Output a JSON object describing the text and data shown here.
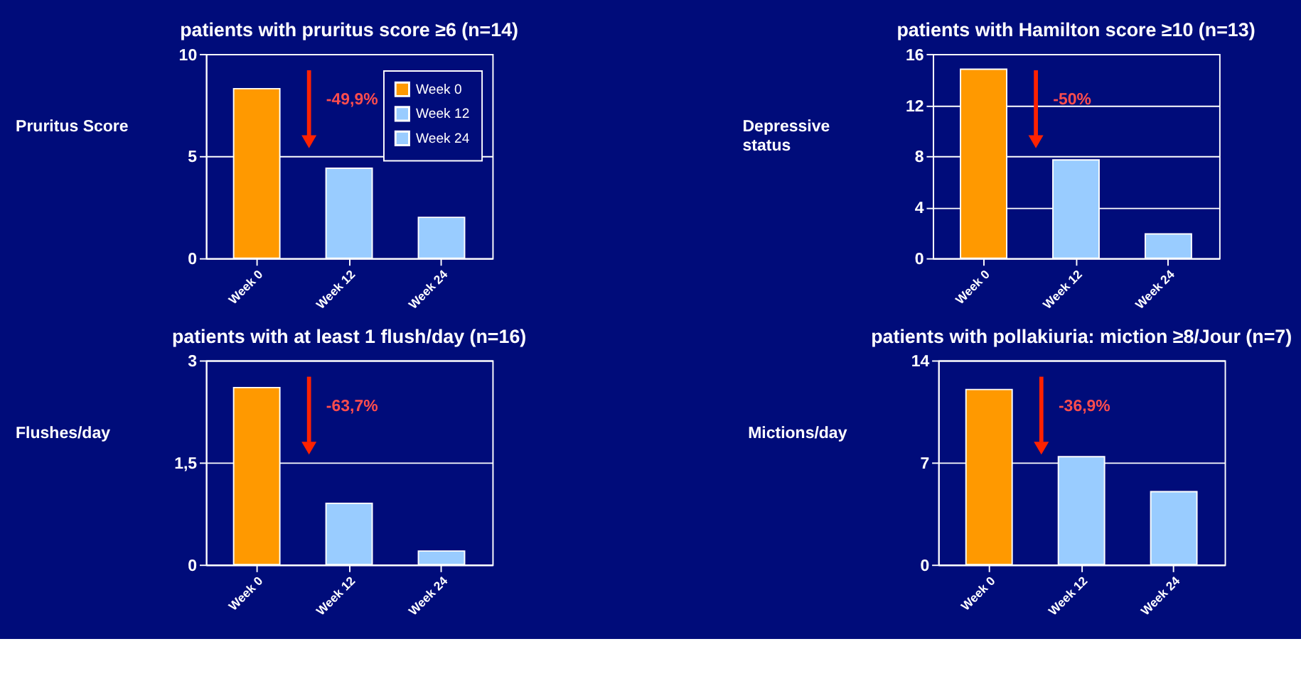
{
  "chart_data": [
    {
      "type": "bar",
      "title": "patients with pruritus score  ≥6 (n=14)",
      "ylabel": "Pruritus Score",
      "categories": [
        "Week 0",
        "Week 12",
        "Week 24"
      ],
      "series": [
        {
          "name": "Week 0",
          "color": "#ff9900",
          "values": [
            8.3,
            null,
            null
          ]
        },
        {
          "name": "Week 12",
          "color": "#99ccff",
          "values": [
            null,
            4.4,
            null
          ]
        },
        {
          "name": "Week 24",
          "color": "#99ccff",
          "values": [
            null,
            null,
            2.0
          ]
        }
      ],
      "ylim": [
        0,
        10
      ],
      "yticks": [
        0,
        5,
        10
      ],
      "grid": "y",
      "legend": "top right",
      "annotations": [
        "-49,9%"
      ]
    },
    {
      "type": "bar",
      "title": "patients with Hamilton score ≥10 (n=13)",
      "ylabel": "Depressive\nstatus",
      "categories": [
        "Week 0",
        "Week 12",
        "Week 24"
      ],
      "values": [
        14.8,
        7.7,
        1.9
      ],
      "colors": [
        "#ff9900",
        "#99ccff",
        "#99ccff"
      ],
      "ylim": [
        0,
        16
      ],
      "yticks": [
        0,
        4,
        8,
        12,
        16
      ],
      "grid": "y",
      "annotations": [
        "-50%"
      ]
    },
    {
      "type": "bar",
      "title": "patients with at least 1 flush/day (n=16)",
      "ylabel": "Flushes/day",
      "categories": [
        "Week 0",
        "Week 12",
        "Week 24"
      ],
      "values": [
        2.6,
        0.9,
        0.2
      ],
      "colors": [
        "#ff9900",
        "#99ccff",
        "#99ccff"
      ],
      "ylim": [
        0,
        3
      ],
      "yticks": [
        0,
        {
          "value": 1.5,
          "label": "1,5"
        },
        3
      ],
      "grid": "y",
      "annotations": [
        "-63,7%"
      ]
    },
    {
      "type": "bar",
      "title": "patients with pollakiuria: miction ≥8/Jour (n=7)",
      "ylabel": "Mictions/day",
      "categories": [
        "Week 0",
        "Week 12",
        "Week 24"
      ],
      "values": [
        12.0,
        7.4,
        5.0
      ],
      "colors": [
        "#ff9900",
        "#99ccff",
        "#99ccff"
      ],
      "ylim": [
        0,
        14
      ],
      "yticks": [
        0,
        7,
        14
      ],
      "grid": "y",
      "annotations": [
        "-36,9%"
      ]
    }
  ]
}
